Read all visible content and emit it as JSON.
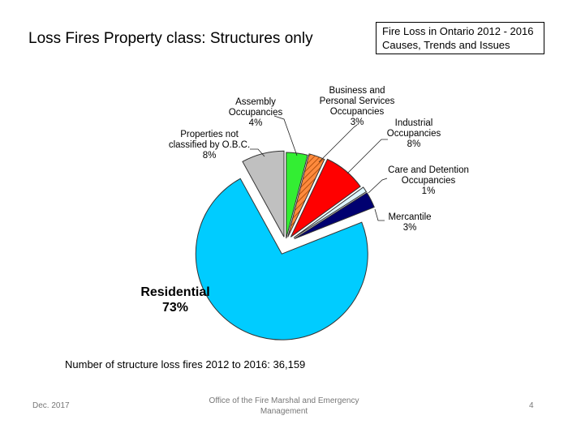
{
  "slide": {
    "title": "Loss Fires Property class: Structures only",
    "header_box": {
      "line1": "Fire Loss in Ontario  2012 - 2016",
      "line2": "Causes, Trends and Issues"
    },
    "note": "Number of structure loss fires 2012 to 2016:  36,159",
    "footer": {
      "date": "Dec. 2017",
      "org_line1": "Office of the Fire Marshal and Emergency",
      "org_line2": "Management",
      "page": "4"
    }
  },
  "chart_data": {
    "type": "pie",
    "title": "Loss Fires Property class: Structures only",
    "total": 36159,
    "slices": [
      {
        "name": "Assembly Occupancies",
        "lines": [
          "Assembly",
          "Occupancies"
        ],
        "value": 4,
        "label": "4%",
        "color": "#33ee33"
      },
      {
        "name": "Business and Personal Services Occupancies",
        "lines": [
          "Business and",
          "Personal Services",
          "Occupancies"
        ],
        "value": 3,
        "label": "3%",
        "color": "#ff8a3d",
        "pattern": "hatched"
      },
      {
        "name": "Industrial Occupancies",
        "lines": [
          "Industrial",
          "Occupancies"
        ],
        "value": 8,
        "label": "8%",
        "color": "#ff0000"
      },
      {
        "name": "Care and Detention Occupancies",
        "lines": [
          "Care and Detention",
          "Occupancies"
        ],
        "value": 1,
        "label": "1%",
        "color": "#dff6ff"
      },
      {
        "name": "Mercantile",
        "lines": [
          "Mercantile"
        ],
        "value": 3,
        "label": "3%",
        "color": "#000070"
      },
      {
        "name": "Residential",
        "lines": [
          "Residential"
        ],
        "value": 73,
        "label": "73%",
        "color": "#00ccff"
      },
      {
        "name": "Properties not classified by O.B.C.",
        "lines": [
          "Properties not",
          "classified by O.B.C."
        ],
        "value": 8,
        "label": "8%",
        "color": "#c0c0c0"
      }
    ]
  }
}
